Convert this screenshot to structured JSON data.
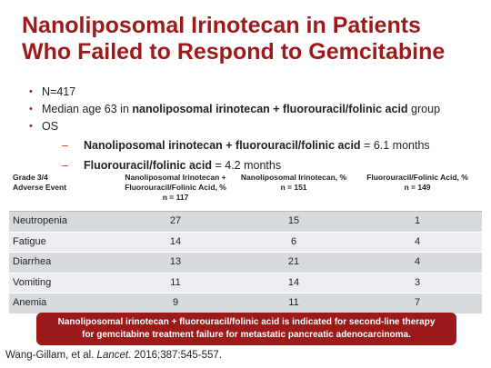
{
  "title_line1": "Nanoliposomal Irinotecan in Patients",
  "title_line2": "Who Failed to Respond to Gemcitabine",
  "bullets": [
    {
      "prefix": "N=417",
      "bold": "",
      "suffix": ""
    },
    {
      "prefix": "Median age 63 in ",
      "bold": "nanoliposomal irinotecan + fluorouracil/folinic acid",
      "suffix": " group"
    },
    {
      "prefix": "OS",
      "bold": "",
      "suffix": ""
    }
  ],
  "sub_bullets": [
    {
      "bold": "Nanoliposomal irinotecan + fluorouracil/folinic acid",
      "suffix": " = 6.1 months"
    },
    {
      "bold": "Fluorouracil/folinic acid",
      "suffix": " = 4.2 months"
    }
  ],
  "bullet_marker": "•",
  "sub_marker": "–",
  "table": {
    "headers": [
      [
        "Grade 3/4",
        "Adverse Event"
      ],
      [
        "Nanoliposomal Irinotecan +",
        "Fluorouracil/Folinic Acid, %",
        "n = 117"
      ],
      [
        "Nanoliposomal Irinotecan, %",
        "n = 151"
      ],
      [
        "Fluorouracil/Folinic Acid, %",
        "n = 149"
      ]
    ],
    "rows": [
      [
        "Neutropenia",
        "27",
        "15",
        "1"
      ],
      [
        "Fatigue",
        "14",
        "6",
        "4"
      ],
      [
        "Diarrhea",
        "13",
        "21",
        "4"
      ],
      [
        "Vomiting",
        "11",
        "14",
        "3"
      ],
      [
        "Anemia",
        "9",
        "11",
        "7"
      ]
    ]
  },
  "banner": {
    "line1": "Nanoliposomal irinotecan + fluorouracil/folinic acid is indicated for second-line therapy",
    "line2": "for gemcitabine treatment failure for metastatic pancreatic adenocarcinoma."
  },
  "citation": {
    "prefix": "Wang-Gillam, et al. ",
    "journal": "Lancet",
    "suffix": ". 2016;387:545-557."
  },
  "colors": {
    "accent": "#9b1b1b",
    "row_dark": "#d7dbe0",
    "row_light": "#ebedf0"
  }
}
